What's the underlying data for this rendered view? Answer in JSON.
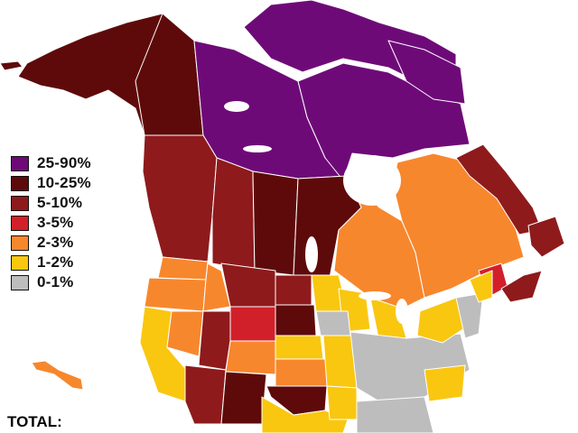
{
  "map": {
    "legend": [
      {
        "label": "25-90%",
        "color": "#6e0a78"
      },
      {
        "label": "10-25%",
        "color": "#5e0a0a"
      },
      {
        "label": "5-10%",
        "color": "#8e1a1c"
      },
      {
        "label": "3-5%",
        "color": "#d2202a"
      },
      {
        "label": "2-3%",
        "color": "#f7872d"
      },
      {
        "label": "1-2%",
        "color": "#f9c710"
      },
      {
        "label": "0-1%",
        "color": "#bdbdbd"
      }
    ],
    "total_label": "TOTAL:"
  }
}
